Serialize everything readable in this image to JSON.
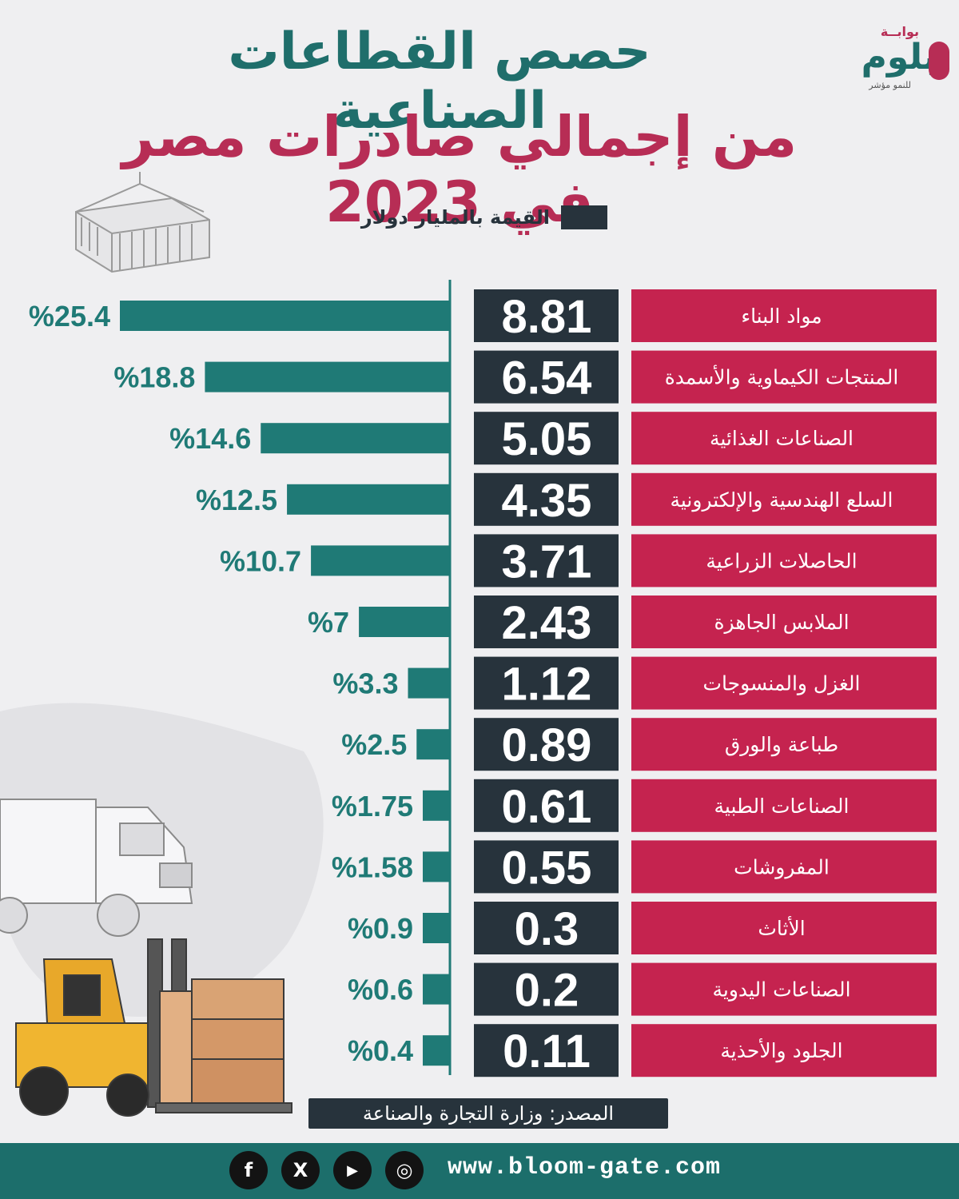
{
  "title_line1": "حصص القطاعات الصناعية",
  "title_line2": "من إجمالي صادرات مصر في 2023",
  "legend_label": "القيمة بالمليار دولار",
  "logo": {
    "top": "بوابــة",
    "main": "بلوم",
    "sub": "للنمو مؤشر"
  },
  "source": "المصدر: وزارة التجارة والصناعة",
  "website": "www.bloom-gate.com",
  "social": {
    "facebook": "f",
    "x": "X",
    "youtube": "▶",
    "instagram": "◎"
  },
  "colors": {
    "teal": "#1f7a76",
    "crimson": "#c5234f",
    "dark": "#27333c"
  },
  "chart_data": {
    "type": "bar",
    "categories": [
      "مواد البناء",
      "المنتجات الكيماوية والأسمدة",
      "الصناعات الغذائية",
      "السلع الهندسية والإلكترونية",
      "الحاصلات الزراعية",
      "الملابس الجاهزة",
      "الغزل والمنسوجات",
      "طباعة والورق",
      "الصناعات الطبية",
      "المفروشات",
      "الأثاث",
      "الصناعات اليدوية",
      "الجلود والأحذية"
    ],
    "values": [
      8.81,
      6.54,
      5.05,
      4.35,
      3.71,
      2.43,
      1.12,
      0.89,
      0.61,
      0.55,
      0.3,
      0.2,
      0.11
    ],
    "value_labels": [
      "8.81",
      "6.54",
      "5.05",
      "4.35",
      "3.71",
      "2.43",
      "1.12",
      "0.89",
      "0.61",
      "0.55",
      "0.3",
      "0.2",
      "0.11"
    ],
    "percent": [
      25.4,
      18.8,
      14.6,
      12.5,
      10.7,
      7,
      3.3,
      2.5,
      1.75,
      1.58,
      0.9,
      0.6,
      0.4
    ],
    "percent_labels": [
      "%25.4",
      "%18.8",
      "%14.6",
      "%12.5",
      "%10.7",
      "%7",
      "%3.3",
      "%2.5",
      "%1.75",
      "%1.58",
      "%0.9",
      "%0.6",
      "%0.4"
    ]
  }
}
